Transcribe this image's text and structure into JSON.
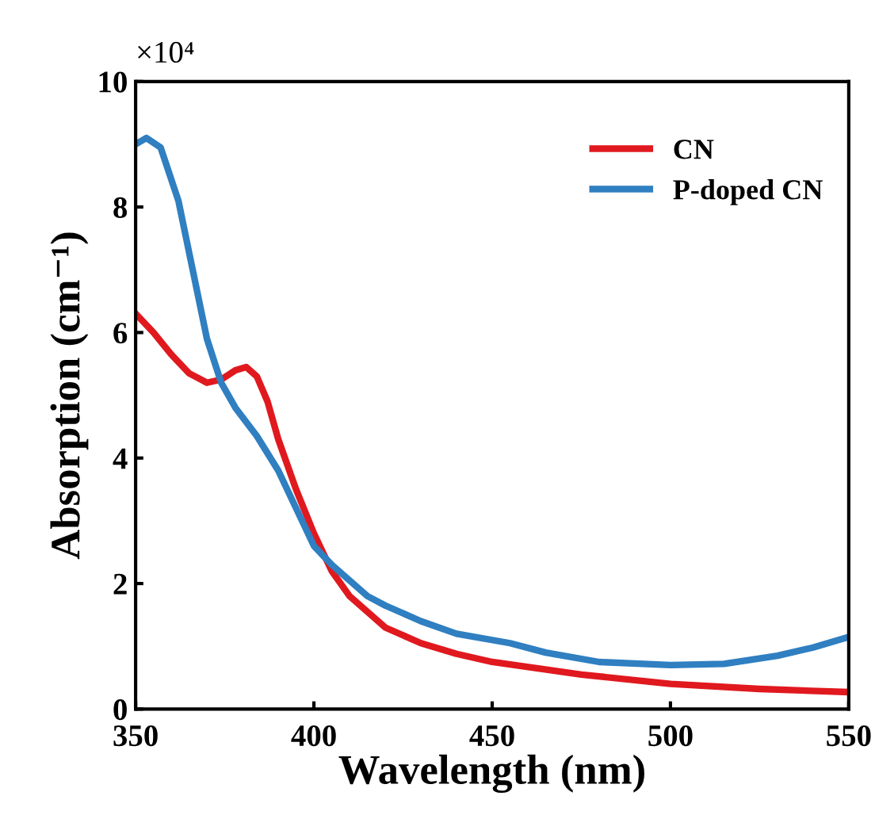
{
  "chart_data": {
    "type": "line",
    "xlabel": "Wavelength (nm)",
    "ylabel": "Absorption (cm⁻¹)",
    "annotations": [
      "×10⁴"
    ],
    "xlim": [
      350,
      550
    ],
    "xticks": [
      350,
      400,
      450,
      500,
      550
    ],
    "ylim": [
      0,
      10
    ],
    "yticks": [
      0,
      2,
      4,
      6,
      8,
      10
    ],
    "grid": false,
    "legend": "top right",
    "marker": "none",
    "line_style": "solid",
    "series": [
      {
        "name": "CN",
        "color": "#e0191f",
        "x": [
          350,
          355,
          360,
          365,
          370,
          374,
          378,
          381,
          384,
          387,
          390,
          395,
          400,
          405,
          410,
          420,
          430,
          440,
          450,
          475,
          500,
          525,
          550
        ],
        "values": [
          6.3,
          6.0,
          5.65,
          5.35,
          5.2,
          5.25,
          5.4,
          5.45,
          5.3,
          4.9,
          4.3,
          3.5,
          2.8,
          2.2,
          1.8,
          1.3,
          1.05,
          0.88,
          0.75,
          0.55,
          0.4,
          0.32,
          0.27
        ]
      },
      {
        "name": "P-doped CN",
        "color": "#2f7fc1",
        "x": [
          350,
          353,
          357,
          362,
          366,
          370,
          374,
          378,
          384,
          390,
          395,
          400,
          405,
          410,
          415,
          420,
          430,
          440,
          455,
          465,
          480,
          500,
          515,
          530,
          540,
          550
        ],
        "values": [
          9.0,
          9.1,
          8.95,
          8.1,
          7.0,
          5.9,
          5.2,
          4.8,
          4.35,
          3.8,
          3.2,
          2.6,
          2.3,
          2.05,
          1.8,
          1.65,
          1.4,
          1.2,
          1.05,
          0.9,
          0.75,
          0.7,
          0.72,
          0.85,
          0.98,
          1.15
        ]
      }
    ]
  }
}
